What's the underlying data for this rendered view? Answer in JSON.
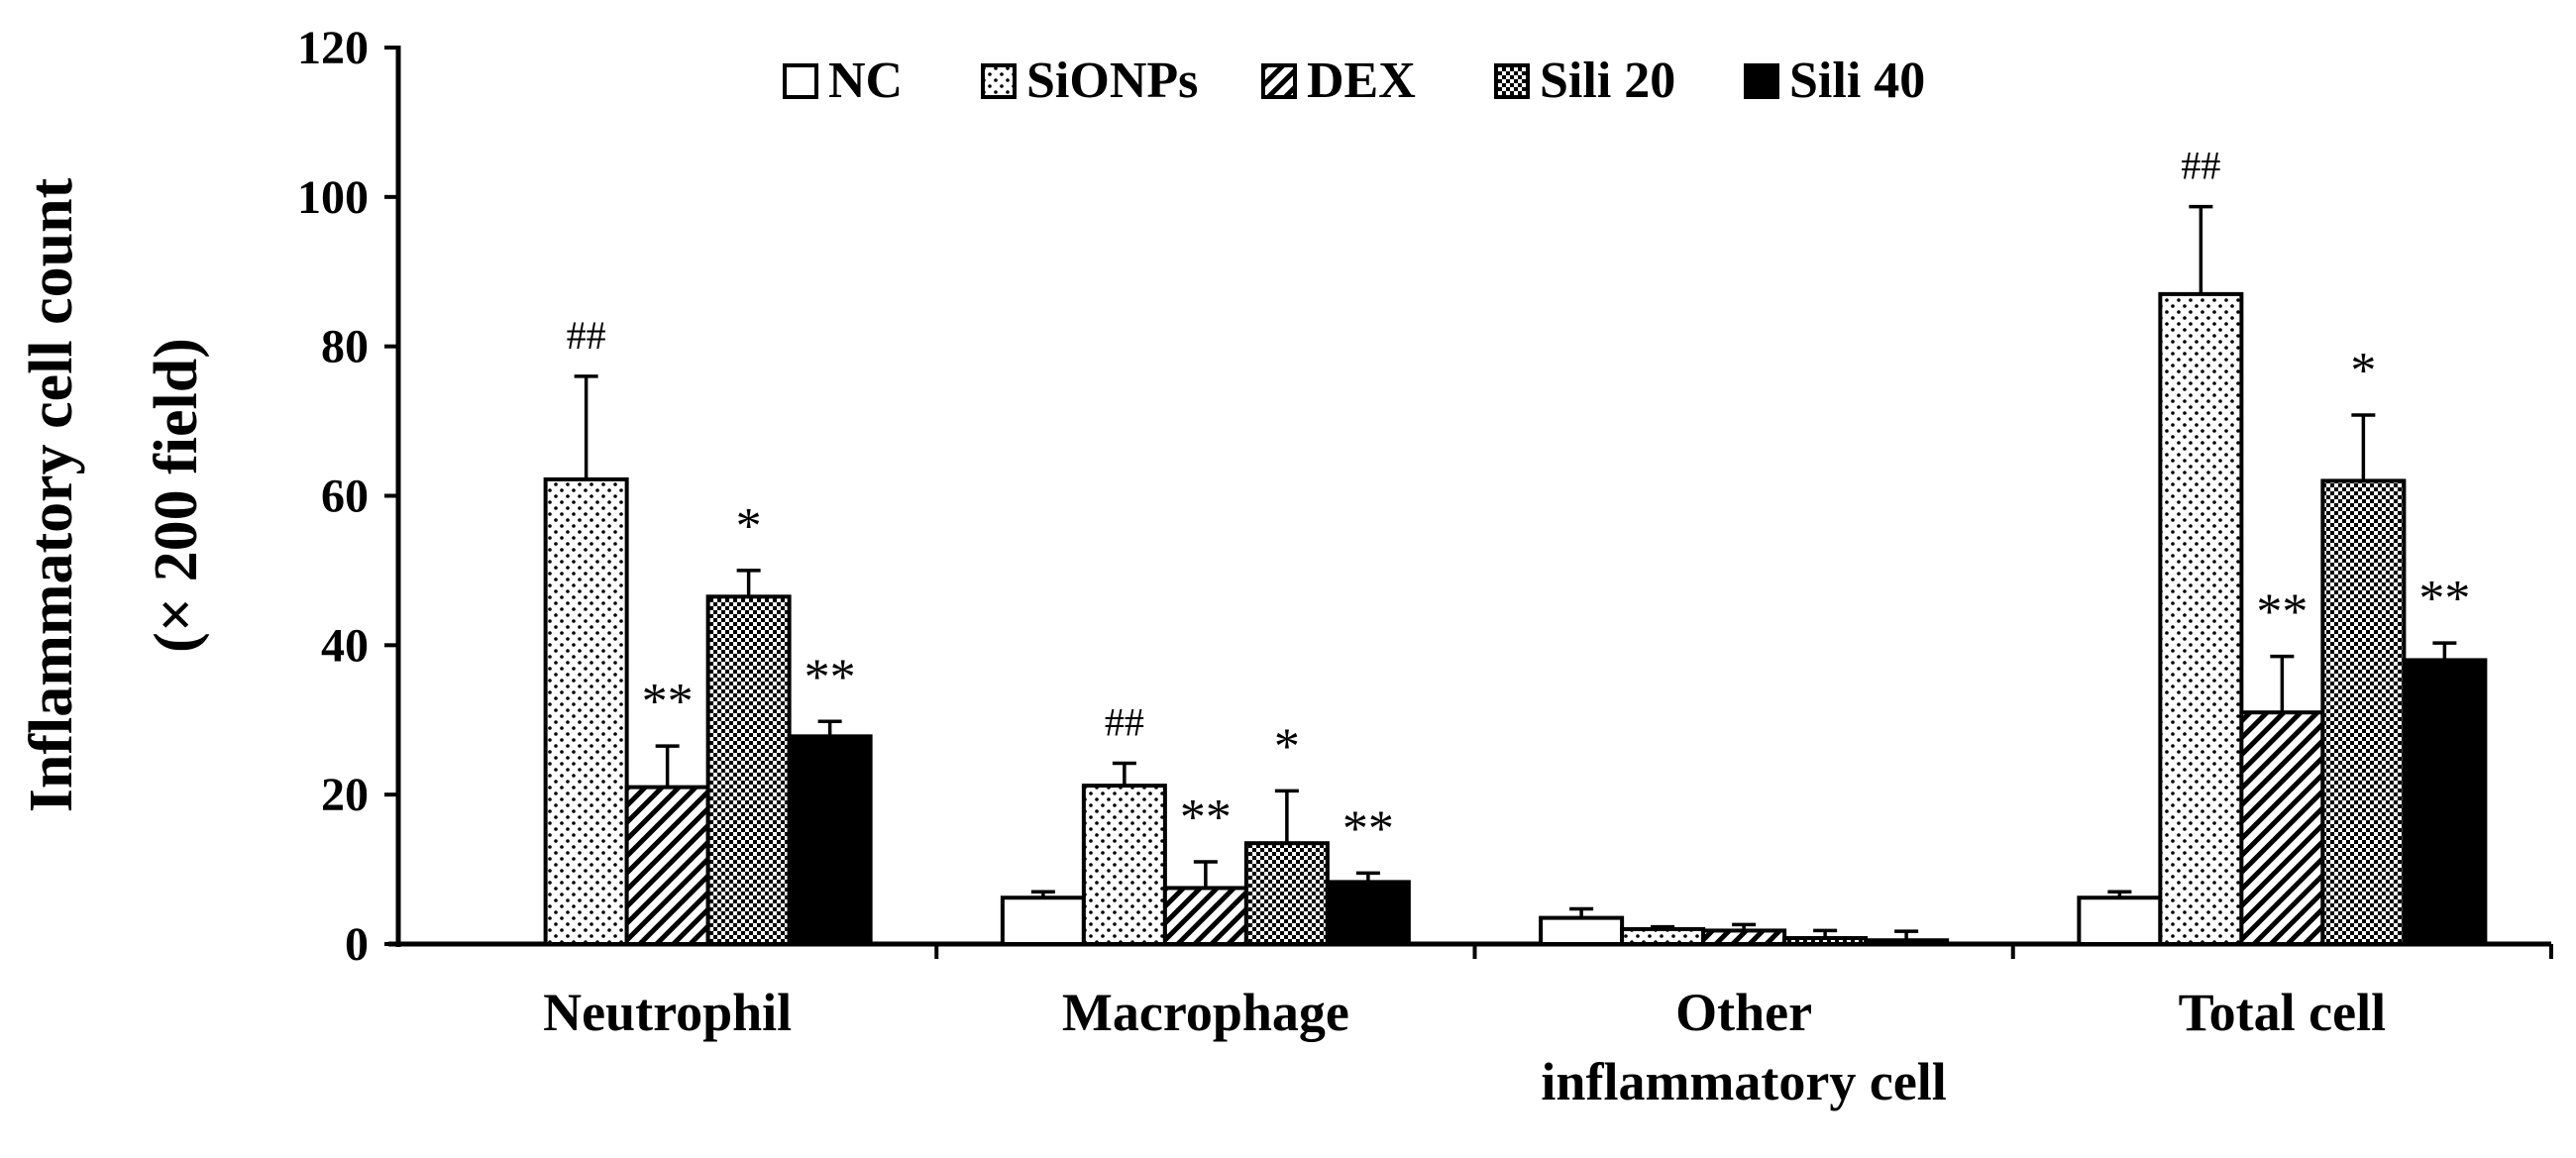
{
  "chart_data": {
    "type": "bar",
    "ylabel_lines": [
      "Inflammatory  cell count",
      "(× 200 field)"
    ],
    "ylim": [
      0,
      120
    ],
    "yticks": [
      "0",
      "20",
      "40",
      "60",
      "80",
      "100",
      "120"
    ],
    "categories": [
      [
        "Neutrophil"
      ],
      [
        "Macrophage"
      ],
      [
        "Other",
        "inflammatory cell"
      ],
      [
        "Total cell"
      ]
    ],
    "legend_position": "top-center",
    "grid": false,
    "series": [
      {
        "name": "NC",
        "pattern": "white",
        "values": [
          0,
          6.2,
          3.5,
          6.2
        ],
        "errors": [
          0,
          0.8,
          1.2,
          0.8
        ],
        "marks": [
          "",
          "",
          "",
          ""
        ]
      },
      {
        "name": "SiONPs",
        "pattern": "dots",
        "values": [
          62.2,
          21.2,
          2.0,
          87.0
        ],
        "errors": [
          13.8,
          3.0,
          0.3,
          11.7
        ],
        "marks": [
          "##",
          "##",
          "",
          "##"
        ]
      },
      {
        "name": "DEX",
        "pattern": "hatch",
        "values": [
          21.0,
          7.5,
          1.8,
          31.0
        ],
        "errors": [
          5.5,
          3.5,
          0.8,
          7.5
        ],
        "marks": [
          "**",
          "**",
          "",
          "**"
        ]
      },
      {
        "name": "Sili 20",
        "pattern": "grid",
        "values": [
          46.5,
          13.5,
          0.8,
          62.0
        ],
        "errors": [
          3.5,
          7.0,
          1.0,
          8.8
        ],
        "marks": [
          "*",
          "*",
          "",
          "*"
        ]
      },
      {
        "name": "Sili 40",
        "pattern": "solid",
        "values": [
          27.8,
          8.3,
          0.5,
          38.0
        ],
        "errors": [
          2.0,
          1.2,
          1.2,
          2.3
        ],
        "marks": [
          "**",
          "**",
          "",
          "**"
        ]
      }
    ]
  }
}
